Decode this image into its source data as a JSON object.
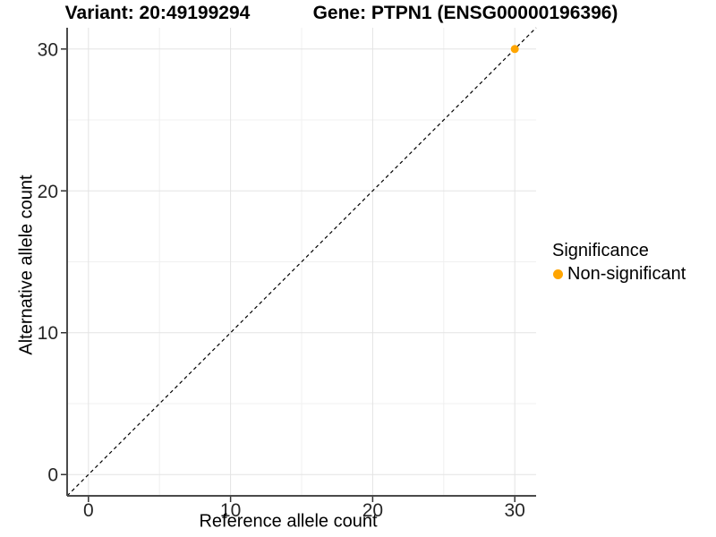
{
  "titles": {
    "variant": "Variant: 20:49199294",
    "gene": "Gene: PTPN1 (ENSG00000196396)"
  },
  "chart_data": {
    "type": "scatter",
    "title_left": "Variant: 20:49199294",
    "title_right": "Gene: PTPN1 (ENSG00000196396)",
    "xlabel": "Reference allele count",
    "ylabel": "Alternative allele count",
    "xlim": [
      -1.5,
      31.5
    ],
    "ylim": [
      -1.5,
      31.5
    ],
    "x_ticks": [
      0,
      10,
      20,
      30
    ],
    "y_ticks": [
      0,
      10,
      20,
      30
    ],
    "x_minor_breaks": [
      5,
      15,
      25
    ],
    "y_minor_breaks": [
      5,
      15,
      25
    ],
    "grid": "major+minor",
    "legend_position": "right-middle",
    "legend_title": "Significance",
    "series": [
      {
        "name": "Non-significant",
        "color": "#FFA500",
        "points": [
          [
            30,
            30
          ]
        ]
      }
    ],
    "reference_line": {
      "kind": "identity y=x",
      "style": "dashed",
      "color": "#000000"
    }
  },
  "legend": {
    "title": "Significance",
    "items": [
      {
        "label": "Non-significant",
        "color": "#FFA500"
      }
    ]
  },
  "colors": {
    "background": "#FFFFFF",
    "grid_major": "#E3E3E3",
    "grid_minor": "#F0F0F0",
    "axis_line": "#4A4A4A",
    "tick_mark": "#333333",
    "tick_label": "#262626",
    "point": "#FFA500",
    "reference_line": "#000000"
  }
}
